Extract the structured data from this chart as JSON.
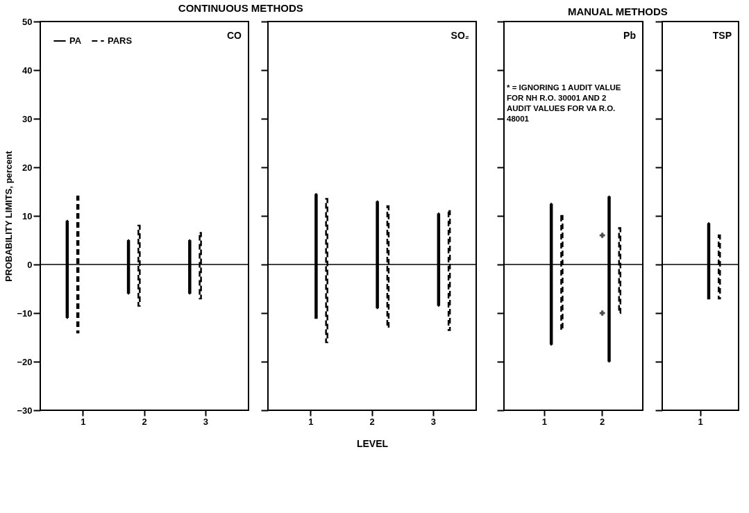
{
  "chart_data": [
    {
      "type": "bar",
      "title": "CONTINUOUS METHODS",
      "ylabel": "PROBABILITY LIMITS, percent",
      "categories": [
        "1",
        "2",
        "3"
      ],
      "ylim": [
        -30,
        50
      ],
      "yticks": [
        -30,
        -20,
        -10,
        0,
        10,
        20,
        30,
        40,
        50
      ],
      "legend": "top left",
      "annotations": [
        "CO"
      ],
      "ref_lines": [
        {
          "axis": "y",
          "value": 0
        }
      ],
      "series": [
        {
          "name": "PA",
          "color": "#000000",
          "line_style": "solid",
          "base": [
            -11,
            -6,
            -6
          ],
          "values": [
            20,
            11,
            11
          ]
        },
        {
          "name": "PARS",
          "color": "#000000",
          "line_style": "dashed",
          "base": [
            -14,
            -8.5,
            -7
          ],
          "values": [
            28,
            16.5,
            13.5
          ]
        }
      ]
    },
    {
      "type": "bar",
      "xlabel": "LEVEL",
      "categories": [
        "1",
        "2",
        "3"
      ],
      "ylim": [
        -30,
        50
      ],
      "yticks": [
        -30,
        -20,
        -10,
        0,
        10,
        20,
        30,
        40,
        50
      ],
      "tick_labels": "x",
      "annotations": [
        "SO₂"
      ],
      "ref_lines": [
        {
          "axis": "y",
          "value": 0
        }
      ],
      "series": [
        {
          "color": "#000000",
          "line_style": "solid",
          "base": [
            -11,
            -9,
            -8.5
          ],
          "values": [
            25.5,
            22,
            19
          ]
        },
        {
          "color": "#000000",
          "line_style": "dashed",
          "base": [
            -16,
            -13,
            -13.5
          ],
          "values": [
            29.5,
            25,
            24.5
          ]
        }
      ]
    },
    {
      "type": "bar",
      "title": "MANUAL METHODS",
      "categories": [
        "1",
        "2"
      ],
      "ylim": [
        -30,
        50
      ],
      "yticks": [
        -30,
        -20,
        -10,
        0,
        10,
        20,
        30,
        40,
        50
      ],
      "tick_labels": "x",
      "annotations": [
        "Pb",
        "* = IGNORING 1 AUDIT VALUE FOR NH R.O. 30001 AND 2 AUDIT VALUES FOR VA R.O. 48001"
      ],
      "ref_lines": [
        {
          "axis": "y",
          "value": 0
        }
      ],
      "series": [
        {
          "color": "#000000",
          "line_style": "solid",
          "base": [
            -16.5,
            -20
          ],
          "values": [
            29,
            34
          ]
        },
        {
          "color": "#000000",
          "line_style": "dashed",
          "base": [
            -13.5,
            -10
          ],
          "values": [
            23.5,
            17.5
          ]
        },
        {
          "type": "scatter",
          "marker": "cross",
          "color": "#000000",
          "x": [
            "2",
            "2"
          ],
          "values": [
            6,
            -10
          ]
        }
      ]
    },
    {
      "type": "bar",
      "categories": [
        "1"
      ],
      "ylim": [
        -30,
        50
      ],
      "yticks": [
        -30,
        -20,
        -10,
        0,
        10,
        20,
        30,
        40,
        50
      ],
      "tick_labels": "x",
      "annotations": [
        "TSP"
      ],
      "ref_lines": [
        {
          "axis": "y",
          "value": 0
        }
      ],
      "series": [
        {
          "color": "#000000",
          "line_style": "solid",
          "base": [
            -7
          ],
          "values": [
            15.5
          ]
        },
        {
          "color": "#000000",
          "line_style": "dashed",
          "base": [
            -7
          ],
          "values": [
            13
          ]
        }
      ]
    }
  ]
}
